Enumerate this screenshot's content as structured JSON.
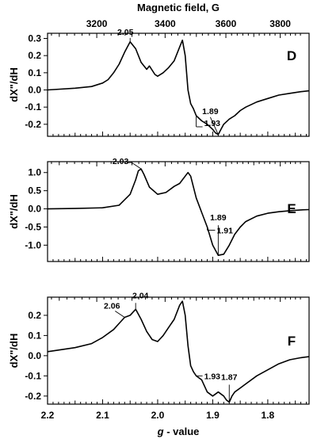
{
  "figure": {
    "top_axis_title": "Magnetic field, G",
    "bottom_axis_title_italic": "g",
    "bottom_axis_title_rest": " - value"
  },
  "chart_data": [
    {
      "type": "line",
      "panel": "D",
      "ylabel": "dX\"/dH",
      "x_field_range_G": [
        3070,
        3890
      ],
      "xlim_g_value": [
        2.2,
        1.725
      ],
      "top_ticks_G": [
        3200,
        3400,
        3600,
        3800
      ],
      "ylim": [
        -0.27,
        0.33
      ],
      "y_ticks": [
        0.3,
        0.2,
        0.1,
        0.0,
        -0.1,
        -0.2
      ],
      "y_tick_labels": [
        "0.3",
        "0.2",
        "0.1",
        "0.0",
        "-0.1",
        "-0.2"
      ],
      "series": [
        {
          "g": [
            2.2,
            2.15,
            2.12,
            2.1,
            2.09,
            2.08,
            2.07,
            2.06,
            2.05,
            2.04,
            2.03,
            2.02,
            2.015,
            2.005,
            2.0,
            1.99,
            1.98,
            1.97,
            1.96,
            1.955,
            1.95,
            1.945,
            1.94,
            1.935,
            1.93,
            1.92,
            1.91,
            1.9,
            1.895,
            1.89,
            1.885,
            1.88,
            1.87,
            1.86,
            1.85,
            1.84,
            1.82,
            1.8,
            1.78,
            1.76,
            1.74,
            1.725
          ],
          "y": [
            0.0,
            0.01,
            0.02,
            0.04,
            0.06,
            0.1,
            0.15,
            0.22,
            0.28,
            0.24,
            0.16,
            0.12,
            0.14,
            0.09,
            0.08,
            0.1,
            0.13,
            0.17,
            0.25,
            0.29,
            0.2,
            0.0,
            -0.08,
            -0.11,
            -0.15,
            -0.18,
            -0.2,
            -0.23,
            -0.25,
            -0.26,
            -0.23,
            -0.2,
            -0.17,
            -0.15,
            -0.12,
            -0.1,
            -0.07,
            -0.05,
            -0.03,
            -0.02,
            -0.01,
            -0.005
          ]
        }
      ],
      "annotations": [
        {
          "label": "2.05",
          "g": 2.05,
          "y": 0.28
        },
        {
          "label": "1.93",
          "g": 1.93,
          "y": -0.15
        },
        {
          "label": "1.89",
          "g": 1.89,
          "y": -0.26
        }
      ]
    },
    {
      "type": "line",
      "panel": "E",
      "ylabel": "dX\"/dH",
      "x_field_range_G": [
        3070,
        3890
      ],
      "xlim_g_value": [
        2.2,
        1.725
      ],
      "ylim": [
        -1.45,
        1.3
      ],
      "y_ticks": [
        1.0,
        0.5,
        0.0,
        -0.5,
        -1.0
      ],
      "y_tick_labels": [
        "1.0",
        "0.5",
        "0.0",
        "-0.5",
        "-1.0"
      ],
      "series": [
        {
          "g": [
            2.2,
            2.15,
            2.1,
            2.07,
            2.05,
            2.04,
            2.035,
            2.03,
            2.025,
            2.015,
            2.0,
            1.985,
            1.97,
            1.96,
            1.955,
            1.945,
            1.94,
            1.93,
            1.92,
            1.91,
            1.9,
            1.89,
            1.88,
            1.87,
            1.86,
            1.85,
            1.84,
            1.82,
            1.8,
            1.78,
            1.76,
            1.74,
            1.725
          ],
          "y": [
            0.0,
            0.01,
            0.03,
            0.1,
            0.4,
            0.8,
            1.05,
            1.1,
            0.95,
            0.6,
            0.4,
            0.45,
            0.62,
            0.7,
            0.8,
            1.0,
            0.9,
            0.3,
            -0.1,
            -0.5,
            -1.0,
            -1.28,
            -1.25,
            -1.0,
            -0.7,
            -0.5,
            -0.35,
            -0.2,
            -0.12,
            -0.08,
            -0.05,
            -0.03,
            -0.02
          ]
        }
      ],
      "annotations": [
        {
          "label": "2.03",
          "g": 2.03,
          "y": 1.1
        },
        {
          "label": "1.91",
          "g": 1.91,
          "y": -0.5
        },
        {
          "label": "1.89",
          "g": 1.89,
          "y": -1.28
        }
      ]
    },
    {
      "type": "line",
      "panel": "F",
      "ylabel": "dX\"/dH",
      "x_field_range_G": [
        3070,
        3890
      ],
      "xlim_g_value": [
        2.2,
        1.725
      ],
      "bottom_ticks_g": [
        2.2,
        2.1,
        2.0,
        1.9,
        1.8
      ],
      "bottom_tick_labels": [
        "2.2",
        "2.1",
        "2.0",
        "1.9",
        "1.8"
      ],
      "ylim": [
        -0.24,
        0.29
      ],
      "y_ticks": [
        0.2,
        0.1,
        0.0,
        -0.1,
        -0.2
      ],
      "y_tick_labels": [
        "0.2",
        "0.1",
        "0.0",
        "-0.1",
        "-0.2"
      ],
      "series": [
        {
          "g": [
            2.2,
            2.15,
            2.12,
            2.1,
            2.08,
            2.07,
            2.06,
            2.05,
            2.04,
            2.03,
            2.02,
            2.01,
            2.0,
            1.99,
            1.98,
            1.97,
            1.96,
            1.955,
            1.95,
            1.945,
            1.94,
            1.935,
            1.93,
            1.92,
            1.91,
            1.9,
            1.89,
            1.88,
            1.875,
            1.87,
            1.865,
            1.86,
            1.85,
            1.84,
            1.82,
            1.8,
            1.78,
            1.76,
            1.74,
            1.725
          ],
          "y": [
            0.02,
            0.04,
            0.06,
            0.09,
            0.13,
            0.16,
            0.19,
            0.2,
            0.23,
            0.18,
            0.12,
            0.08,
            0.07,
            0.1,
            0.14,
            0.18,
            0.25,
            0.27,
            0.2,
            0.05,
            -0.05,
            -0.08,
            -0.1,
            -0.12,
            -0.18,
            -0.2,
            -0.18,
            -0.2,
            -0.22,
            -0.23,
            -0.2,
            -0.18,
            -0.16,
            -0.14,
            -0.1,
            -0.07,
            -0.04,
            -0.02,
            -0.01,
            -0.005
          ]
        }
      ],
      "annotations": [
        {
          "label": "2.06",
          "g": 2.06,
          "y": 0.19
        },
        {
          "label": "2.04",
          "g": 2.04,
          "y": 0.23
        },
        {
          "label": "1.93",
          "g": 1.93,
          "y": -0.1
        },
        {
          "label": "1.87",
          "g": 1.87,
          "y": -0.23
        }
      ]
    }
  ]
}
